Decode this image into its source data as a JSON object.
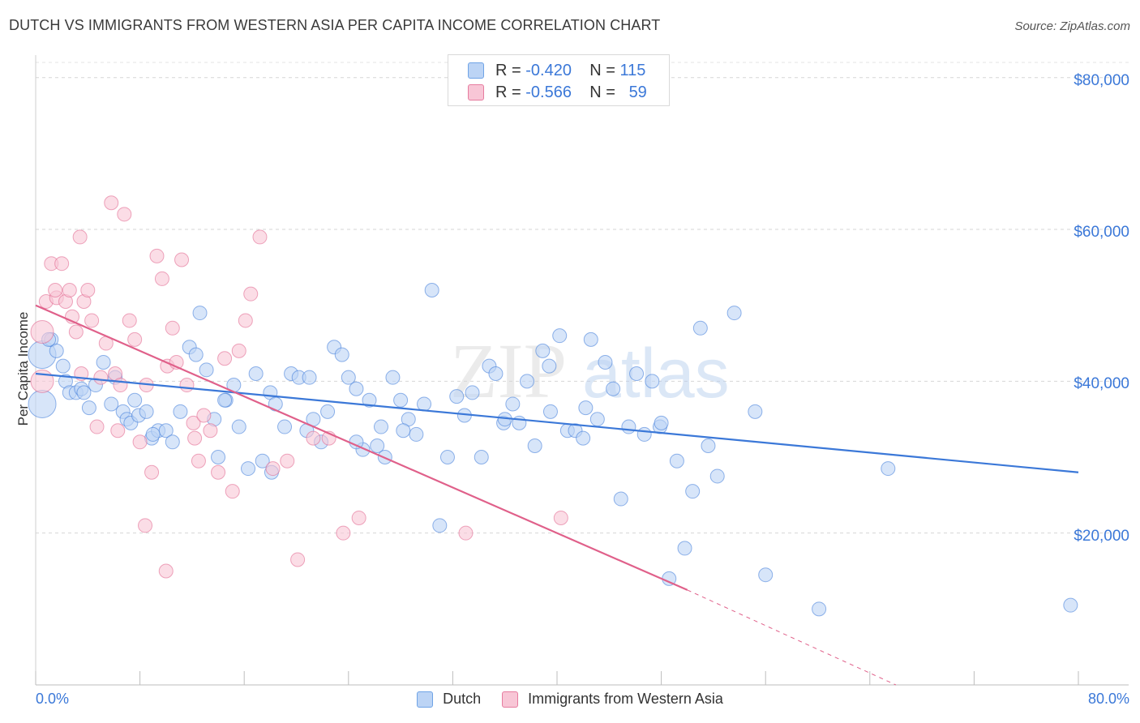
{
  "header": {
    "title": "DUTCH VS IMMIGRANTS FROM WESTERN ASIA PER CAPITA INCOME CORRELATION CHART",
    "source": "Source: ZipAtlas.com"
  },
  "legend": {
    "rows": [
      {
        "r_label": "R =",
        "r_value": "-0.420",
        "n_label": "N =",
        "n_value": "115",
        "color": "#6fa3e6",
        "fill": "#bcd4f5"
      },
      {
        "r_label": "R =",
        "r_value": "-0.566",
        "n_label": "N =",
        "n_value": "59",
        "color": "#e67c9f",
        "fill": "#f8c6d6"
      }
    ],
    "bottom": [
      "Dutch",
      "Immigrants from Western Asia"
    ]
  },
  "watermark": {
    "zip": "ZIP",
    "atlas": "atlas"
  },
  "chart_data": {
    "type": "scatter",
    "ylabel": "Per Capita Income",
    "x_tick_labels": [
      "0.0%",
      "80.0%"
    ],
    "y_tick_labels": [
      "$20,000",
      "$40,000",
      "$60,000",
      "$80,000"
    ],
    "xlim": [
      0,
      80
    ],
    "ylim": [
      0,
      82000
    ],
    "grid": true,
    "legend_position": "top-center",
    "series": [
      {
        "name": "Dutch",
        "color": "#3b78d8",
        "fill": "#bcd4f5",
        "trend": {
          "x0": 0,
          "y0": 41000,
          "x1": 80,
          "y1": 28000
        },
        "points": [
          [
            0.5,
            43500
          ],
          [
            0.5,
            37000
          ],
          [
            1.2,
            45500
          ],
          [
            1.6,
            44000
          ],
          [
            2.1,
            42000
          ],
          [
            2.3,
            40000
          ],
          [
            2.6,
            38500
          ],
          [
            3.1,
            38500
          ],
          [
            3.5,
            39000
          ],
          [
            4.1,
            36500
          ],
          [
            4.6,
            39500
          ],
          [
            5.2,
            42500
          ],
          [
            5.8,
            37000
          ],
          [
            6.1,
            40500
          ],
          [
            6.7,
            36000
          ],
          [
            7.0,
            35000
          ],
          [
            7.3,
            34500
          ],
          [
            7.6,
            37500
          ],
          [
            7.9,
            35500
          ],
          [
            8.5,
            36000
          ],
          [
            8.9,
            32500
          ],
          [
            9.4,
            33500
          ],
          [
            10.0,
            33500
          ],
          [
            10.5,
            32000
          ],
          [
            11.1,
            36000
          ],
          [
            11.8,
            44500
          ],
          [
            12.3,
            43500
          ],
          [
            12.6,
            49000
          ],
          [
            13.1,
            41500
          ],
          [
            13.7,
            35000
          ],
          [
            14.0,
            30000
          ],
          [
            14.6,
            37500
          ],
          [
            15.2,
            39500
          ],
          [
            15.6,
            34000
          ],
          [
            16.3,
            28500
          ],
          [
            16.9,
            41000
          ],
          [
            17.4,
            29500
          ],
          [
            18.0,
            38500
          ],
          [
            18.4,
            37000
          ],
          [
            19.1,
            34000
          ],
          [
            19.6,
            41000
          ],
          [
            20.2,
            40500
          ],
          [
            20.8,
            33500
          ],
          [
            21.3,
            35000
          ],
          [
            21.9,
            32000
          ],
          [
            22.4,
            36000
          ],
          [
            22.9,
            44500
          ],
          [
            23.5,
            43500
          ],
          [
            24.0,
            40500
          ],
          [
            24.6,
            39000
          ],
          [
            25.1,
            31000
          ],
          [
            25.6,
            37500
          ],
          [
            26.2,
            31500
          ],
          [
            26.8,
            30000
          ],
          [
            27.4,
            40500
          ],
          [
            28.0,
            37500
          ],
          [
            28.6,
            35000
          ],
          [
            29.2,
            33000
          ],
          [
            29.8,
            37000
          ],
          [
            30.4,
            52000
          ],
          [
            31.0,
            21000
          ],
          [
            31.6,
            30000
          ],
          [
            32.3,
            38000
          ],
          [
            32.9,
            35500
          ],
          [
            33.5,
            38500
          ],
          [
            34.2,
            30000
          ],
          [
            34.8,
            42000
          ],
          [
            35.3,
            41000
          ],
          [
            35.9,
            34500
          ],
          [
            36.6,
            37000
          ],
          [
            37.1,
            34500
          ],
          [
            37.7,
            40000
          ],
          [
            38.3,
            31500
          ],
          [
            38.9,
            44000
          ],
          [
            39.5,
            36000
          ],
          [
            40.2,
            46000
          ],
          [
            40.8,
            33500
          ],
          [
            41.4,
            33500
          ],
          [
            42.0,
            32500
          ],
          [
            42.6,
            45500
          ],
          [
            43.1,
            35000
          ],
          [
            43.7,
            42500
          ],
          [
            44.3,
            39000
          ],
          [
            44.9,
            24500
          ],
          [
            45.5,
            34000
          ],
          [
            46.1,
            41000
          ],
          [
            46.7,
            33000
          ],
          [
            47.3,
            40000
          ],
          [
            47.9,
            34000
          ],
          [
            48.6,
            14000
          ],
          [
            49.2,
            29500
          ],
          [
            49.8,
            18000
          ],
          [
            50.4,
            25500
          ],
          [
            51.0,
            47000
          ],
          [
            51.6,
            31500
          ],
          [
            52.3,
            27500
          ],
          [
            53.6,
            49000
          ],
          [
            55.2,
            36000
          ],
          [
            56.0,
            14500
          ],
          [
            60.1,
            10000
          ],
          [
            65.4,
            28500
          ],
          [
            79.4,
            10500
          ],
          [
            1.0,
            45500
          ],
          [
            3.7,
            38500
          ],
          [
            9.0,
            33000
          ],
          [
            14.5,
            37500
          ],
          [
            21.0,
            40500
          ],
          [
            26.5,
            34000
          ],
          [
            28.2,
            33500
          ],
          [
            36.0,
            35000
          ],
          [
            42.2,
            36500
          ],
          [
            48.0,
            34500
          ],
          [
            39.4,
            42000
          ],
          [
            24.6,
            32000
          ],
          [
            18.1,
            28000
          ]
        ]
      },
      {
        "name": "Immigrants from Western Asia",
        "color": "#e0608a",
        "fill": "#f8c6d6",
        "trend": {
          "x0": 0,
          "y0": 50000,
          "x1": 50,
          "y1": 12500
        },
        "trend_dashed_to": {
          "x": 66,
          "y": 0
        },
        "points": [
          [
            0.5,
            40000
          ],
          [
            0.5,
            46500
          ],
          [
            0.8,
            50500
          ],
          [
            1.2,
            55500
          ],
          [
            1.6,
            51000
          ],
          [
            2.0,
            55500
          ],
          [
            2.3,
            50500
          ],
          [
            2.6,
            52000
          ],
          [
            2.8,
            48500
          ],
          [
            3.1,
            46500
          ],
          [
            3.4,
            59000
          ],
          [
            3.7,
            50500
          ],
          [
            4.0,
            52000
          ],
          [
            4.3,
            48000
          ],
          [
            4.7,
            34000
          ],
          [
            5.0,
            40500
          ],
          [
            5.4,
            45000
          ],
          [
            5.8,
            63500
          ],
          [
            6.1,
            41000
          ],
          [
            6.5,
            39500
          ],
          [
            6.8,
            62000
          ],
          [
            7.2,
            48000
          ],
          [
            7.6,
            45500
          ],
          [
            8.0,
            32000
          ],
          [
            8.5,
            39500
          ],
          [
            8.9,
            28000
          ],
          [
            9.3,
            56500
          ],
          [
            9.7,
            53500
          ],
          [
            10.1,
            42000
          ],
          [
            10.5,
            47000
          ],
          [
            10.8,
            42500
          ],
          [
            11.2,
            56000
          ],
          [
            11.6,
            39500
          ],
          [
            12.1,
            34500
          ],
          [
            12.5,
            29500
          ],
          [
            12.9,
            35500
          ],
          [
            13.4,
            33500
          ],
          [
            14.0,
            28000
          ],
          [
            14.5,
            43000
          ],
          [
            15.1,
            25500
          ],
          [
            15.6,
            44000
          ],
          [
            16.1,
            48000
          ],
          [
            16.5,
            51500
          ],
          [
            17.2,
            59000
          ],
          [
            18.2,
            28500
          ],
          [
            19.3,
            29500
          ],
          [
            20.1,
            16500
          ],
          [
            21.3,
            32500
          ],
          [
            22.5,
            32500
          ],
          [
            23.6,
            20000
          ],
          [
            24.8,
            22000
          ],
          [
            33.0,
            20000
          ],
          [
            40.3,
            22000
          ],
          [
            1.5,
            52000
          ],
          [
            3.5,
            41000
          ],
          [
            6.3,
            33500
          ],
          [
            10.0,
            15000
          ],
          [
            8.4,
            21000
          ],
          [
            12.2,
            32500
          ]
        ]
      }
    ]
  }
}
